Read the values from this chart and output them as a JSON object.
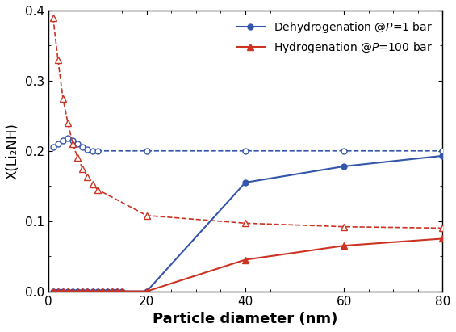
{
  "title": "",
  "xlabel": "Particle diameter (nm)",
  "ylabel": "X(Li₂NH)",
  "xlim": [
    0,
    80
  ],
  "ylim": [
    0,
    0.4
  ],
  "xticks": [
    0,
    20,
    40,
    60,
    80
  ],
  "yticks": [
    0,
    0.1,
    0.2,
    0.3,
    0.4
  ],
  "blue_solid_x": [
    1,
    2,
    3,
    4,
    5,
    6,
    7,
    8,
    9,
    10,
    11,
    12,
    13,
    14,
    15,
    20,
    40,
    60,
    80
  ],
  "blue_solid_y": [
    0.0,
    0.0,
    0.0,
    0.0,
    0.0,
    0.0,
    0.0,
    0.0,
    0.0,
    0.0,
    0.0,
    0.0,
    0.0,
    0.0,
    0.0,
    0.0,
    0.155,
    0.178,
    0.193
  ],
  "blue_dashed_x": [
    1,
    2,
    3,
    4,
    5,
    6,
    7,
    8,
    9,
    10,
    20,
    40,
    60,
    80
  ],
  "blue_dashed_y": [
    0.205,
    0.21,
    0.215,
    0.218,
    0.215,
    0.21,
    0.205,
    0.202,
    0.2,
    0.2,
    0.2,
    0.2,
    0.2,
    0.2
  ],
  "red_solid_x": [
    1,
    2,
    3,
    4,
    5,
    6,
    7,
    8,
    9,
    10,
    11,
    12,
    13,
    14,
    15,
    20,
    40,
    60,
    80
  ],
  "red_solid_y": [
    0.0,
    0.0,
    0.0,
    0.0,
    0.0,
    0.0,
    0.0,
    0.0,
    0.0,
    0.0,
    0.0,
    0.0,
    0.0,
    0.0,
    0.0,
    0.0,
    0.045,
    0.065,
    0.075
  ],
  "red_dashed_x": [
    1,
    2,
    3,
    4,
    5,
    6,
    7,
    8,
    9,
    10,
    20,
    40,
    60,
    80
  ],
  "red_dashed_y": [
    0.39,
    0.33,
    0.275,
    0.24,
    0.21,
    0.19,
    0.175,
    0.163,
    0.153,
    0.145,
    0.108,
    0.097,
    0.092,
    0.09
  ],
  "blue_color": "#3355aa",
  "red_color": "#cc3322",
  "legend_blue": "Dehydrogenation @$P$=1 bar",
  "legend_red": "Hydrogenation @$P$=100 bar",
  "figsize": [
    5.65,
    4.11
  ],
  "dpi": 100
}
